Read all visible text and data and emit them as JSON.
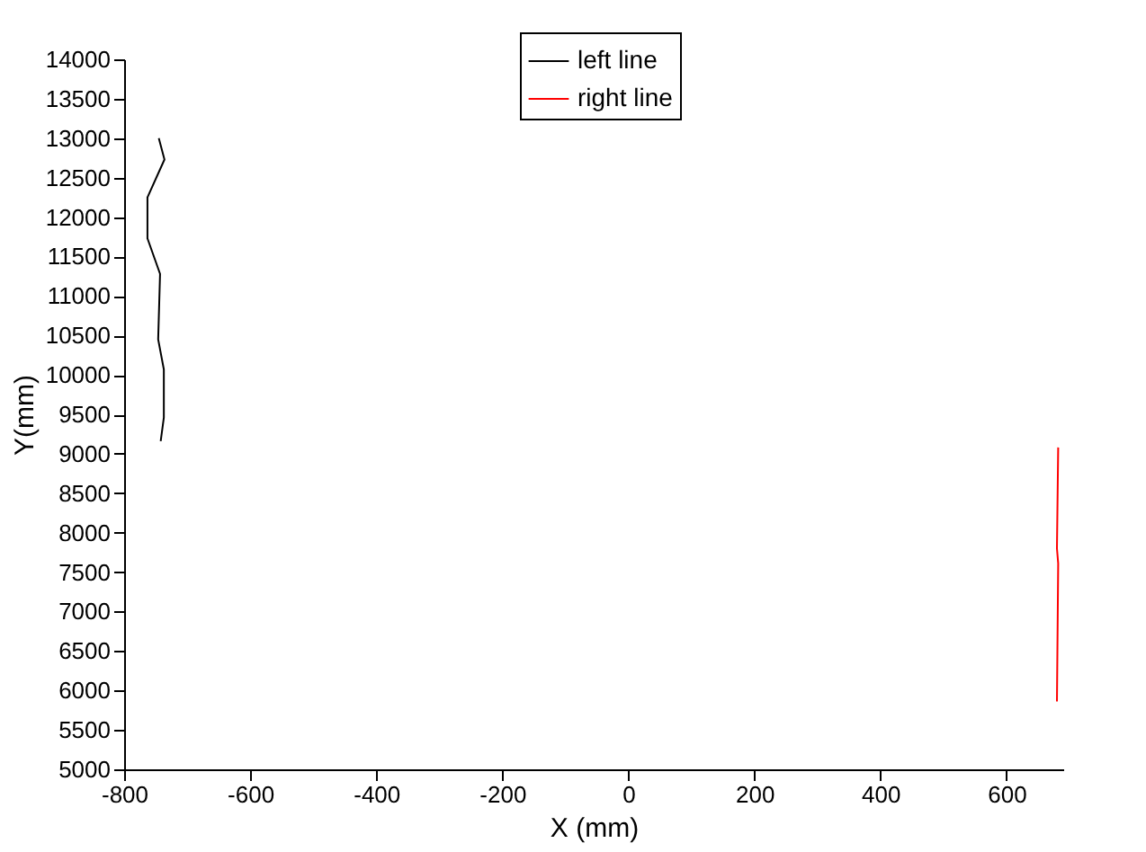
{
  "chart_data": {
    "type": "line",
    "xlabel": "X (mm)",
    "ylabel": "Y(mm)",
    "xlim": [
      -800,
      690
    ],
    "xticks": [
      -800,
      -600,
      -400,
      -200,
      0,
      200,
      400,
      600
    ],
    "ylim": [
      5000,
      14000
    ],
    "yticks": [
      5000,
      5500,
      6000,
      6500,
      7000,
      7500,
      8000,
      8500,
      9000,
      9500,
      10000,
      10500,
      11000,
      11500,
      12000,
      12500,
      13000,
      13500,
      14000
    ],
    "series": [
      {
        "name": "left line",
        "color": "#000000",
        "x": [
          -745,
          -736,
          -763,
          -763,
          -743,
          -746,
          -737,
          -737,
          -742
        ],
        "values": [
          13000,
          12730,
          12250,
          11730,
          11280,
          10450,
          10070,
          9460,
          9160
        ]
      },
      {
        "name": "right line",
        "color": "#ff0000",
        "x": [
          682,
          680,
          682,
          680
        ],
        "values": [
          9080,
          7800,
          7610,
          5860
        ]
      }
    ],
    "legend": "top",
    "grid": false,
    "line_style": "solid",
    "marker": "none"
  }
}
